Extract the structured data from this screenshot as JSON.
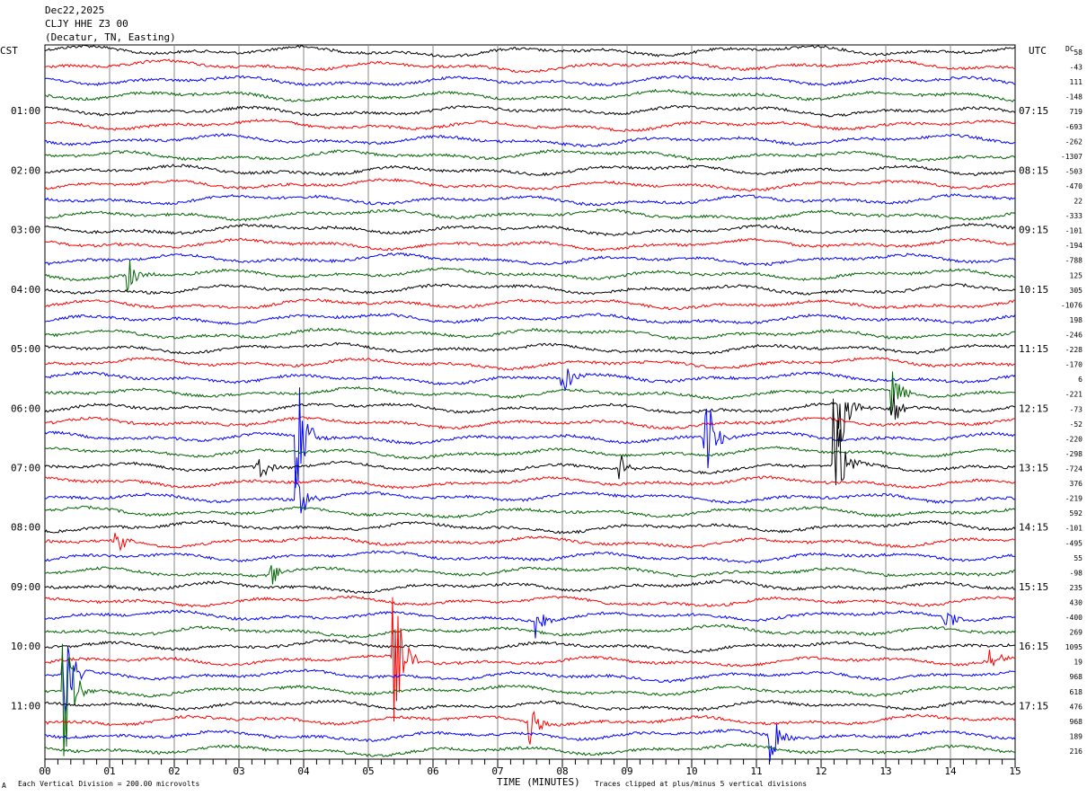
{
  "header": {
    "date": "Dec22,2025",
    "station": "CLJY HHE Z3 00",
    "location": "(Decatur, TN, Easting)"
  },
  "left_axis_label": "CST",
  "right_axis_label": "UTC",
  "dc_label": "DC",
  "footer": {
    "corner_mark": "A",
    "scale": "Each Vertical Division =  200.00 microvolts",
    "xlabel": "TIME (MINUTES)",
    "clip_note": "Traces clipped at plus/minus 5 vertical divisions"
  },
  "chart_data": {
    "type": "line",
    "title": "CLJY HHE Z3 00 helicorder",
    "xlabel": "TIME (MINUTES)",
    "xlim": [
      0,
      15
    ],
    "x_ticks": [
      "00",
      "01",
      "02",
      "03",
      "04",
      "05",
      "06",
      "07",
      "08",
      "09",
      "10",
      "11",
      "12",
      "13",
      "14",
      "15"
    ],
    "rows": 48,
    "row_minutes": 15,
    "trace_colors": [
      "#000000",
      "#ff0000",
      "#0000ff",
      "#006400"
    ],
    "left_time_labels": [
      {
        "row": 4,
        "label": "01:00"
      },
      {
        "row": 8,
        "label": "02:00"
      },
      {
        "row": 12,
        "label": "03:00"
      },
      {
        "row": 16,
        "label": "04:00"
      },
      {
        "row": 20,
        "label": "05:00"
      },
      {
        "row": 24,
        "label": "06:00"
      },
      {
        "row": 28,
        "label": "07:00"
      },
      {
        "row": 32,
        "label": "08:00"
      },
      {
        "row": 36,
        "label": "09:00"
      },
      {
        "row": 40,
        "label": "10:00"
      },
      {
        "row": 44,
        "label": "11:00"
      }
    ],
    "right_time_labels": [
      {
        "row": 4,
        "label": "07:15"
      },
      {
        "row": 8,
        "label": "08:15"
      },
      {
        "row": 12,
        "label": "09:15"
      },
      {
        "row": 16,
        "label": "10:15"
      },
      {
        "row": 20,
        "label": "11:15"
      },
      {
        "row": 24,
        "label": "12:15"
      },
      {
        "row": 28,
        "label": "13:15"
      },
      {
        "row": 32,
        "label": "14:15"
      },
      {
        "row": 36,
        "label": "15:15"
      },
      {
        "row": 40,
        "label": "16:15"
      },
      {
        "row": 44,
        "label": "17:15"
      }
    ],
    "dc_offsets": [
      "58",
      "-43",
      "111",
      "-148",
      "719",
      "-693",
      "-262",
      "-1307",
      "-503",
      "-470",
      "22",
      "-333",
      "-101",
      "-194",
      "-788",
      "125",
      "305",
      "-1076",
      "198",
      "-246",
      "-228",
      "-170",
      "6",
      "-221",
      "-73",
      "-52",
      "-220",
      "-298",
      "-724",
      "376",
      "-219",
      "592",
      "-101",
      "-495",
      "55",
      "-98",
      "235",
      "430",
      "-400",
      "269",
      "1095",
      "19",
      "968",
      "618",
      "476",
      "968",
      "189",
      "216"
    ],
    "events": [
      {
        "row": 15,
        "minute": 1.3,
        "amp": 1.2
      },
      {
        "row": 22,
        "minute": 8.0,
        "amp": 1.5
      },
      {
        "row": 23,
        "minute": 13.1,
        "amp": 2.0
      },
      {
        "row": 24,
        "minute": 13.1,
        "amp": 1.5
      },
      {
        "row": 26,
        "minute": 3.9,
        "amp": 4.5
      },
      {
        "row": 26,
        "minute": 10.2,
        "amp": 4.0
      },
      {
        "row": 28,
        "minute": 3.3,
        "amp": 1.2
      },
      {
        "row": 28,
        "minute": 12.2,
        "amp": 5.0
      },
      {
        "row": 28,
        "minute": 8.9,
        "amp": 1.0
      },
      {
        "row": 30,
        "minute": 3.9,
        "amp": 2.0
      },
      {
        "row": 33,
        "minute": 1.1,
        "amp": 1.0
      },
      {
        "row": 35,
        "minute": 3.5,
        "amp": 1.0
      },
      {
        "row": 38,
        "minute": 7.6,
        "amp": 1.6
      },
      {
        "row": 38,
        "minute": 13.9,
        "amp": 1.2
      },
      {
        "row": 41,
        "minute": 5.4,
        "amp": 4.5
      },
      {
        "row": 42,
        "minute": 0.3,
        "amp": 3.5
      },
      {
        "row": 43,
        "minute": 0.3,
        "amp": 5.0
      },
      {
        "row": 45,
        "minute": 7.5,
        "amp": 1.5
      },
      {
        "row": 46,
        "minute": 11.2,
        "amp": 3.0
      },
      {
        "row": 41,
        "minute": 14.6,
        "amp": 1.2
      },
      {
        "row": 24,
        "minute": 12.3,
        "amp": 3.0
      }
    ]
  }
}
